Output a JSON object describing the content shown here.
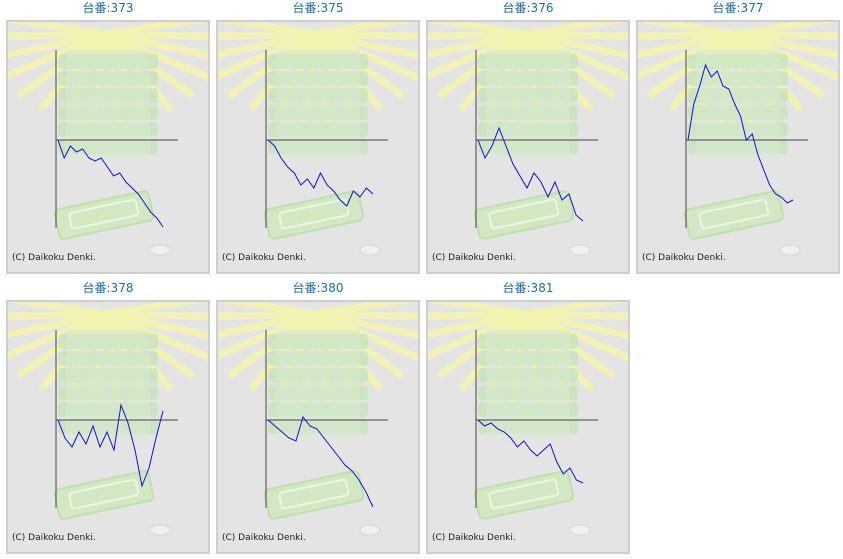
{
  "page": {
    "machines": [
      {
        "label": "台番:373",
        "copyright": "(C) Daikoku Denki.",
        "graph_values": [
          0.0,
          -0.3,
          -0.1,
          -0.2,
          -0.15,
          -0.3,
          -0.35,
          -0.3,
          -0.45,
          -0.6,
          -0.55,
          -0.7,
          -0.8,
          -0.9,
          -1.05,
          -1.2,
          -1.3,
          -1.45
        ]
      },
      {
        "label": "台番:375",
        "copyright": "(C) Daikoku Denki.",
        "graph_values": [
          0.0,
          -0.1,
          -0.3,
          -0.45,
          -0.55,
          -0.75,
          -0.65,
          -0.8,
          -0.55,
          -0.75,
          -0.85,
          -1.0,
          -1.1,
          -0.85,
          -0.95,
          -0.8,
          -0.9
        ]
      },
      {
        "label": "台番:376",
        "copyright": "(C) Daikoku Denki.",
        "graph_values": [
          0.0,
          -0.3,
          -0.1,
          0.2,
          -0.1,
          -0.4,
          -0.6,
          -0.8,
          -0.55,
          -0.7,
          -0.95,
          -0.7,
          -1.0,
          -0.9,
          -1.25,
          -1.35
        ]
      },
      {
        "label": "台番:377",
        "copyright": "(C) Daikoku Denki.",
        "graph_values": [
          0.0,
          0.6,
          0.9,
          1.25,
          1.05,
          1.15,
          0.9,
          0.85,
          0.6,
          0.4,
          0.0,
          0.1,
          -0.25,
          -0.5,
          -0.75,
          -0.9,
          -0.95,
          -1.05,
          -1.0
        ]
      },
      {
        "label": "台番:378",
        "copyright": "(C) Daikoku Denki.",
        "graph_values": [
          0.0,
          -0.3,
          -0.45,
          -0.2,
          -0.4,
          -0.1,
          -0.45,
          -0.2,
          -0.5,
          0.25,
          -0.05,
          -0.5,
          -1.1,
          -0.8,
          -0.3,
          0.15
        ]
      },
      {
        "label": "台番:380",
        "copyright": "(C) Daikoku Denki.",
        "graph_values": [
          0.0,
          -0.1,
          -0.2,
          -0.3,
          -0.35,
          0.05,
          -0.1,
          -0.15,
          -0.3,
          -0.45,
          -0.6,
          -0.75,
          -0.85,
          -1.0,
          -1.2,
          -1.45
        ]
      },
      {
        "label": "台番:381",
        "copyright": "(C) Daikoku Denki.",
        "graph_values": [
          0.0,
          -0.1,
          -0.05,
          -0.15,
          -0.2,
          -0.3,
          -0.45,
          -0.35,
          -0.5,
          -0.6,
          -0.5,
          -0.4,
          -0.7,
          -0.9,
          -0.8,
          -1.0,
          -1.05
        ]
      }
    ],
    "colors": {
      "line": "#1010d8",
      "axis": "#444444",
      "label": "#1a6fa8",
      "frame_border": "#cfcfcf",
      "frame_bg": "#e4e4e4",
      "rays": "#f4f4b0",
      "stack": "#c4e4b8"
    }
  }
}
